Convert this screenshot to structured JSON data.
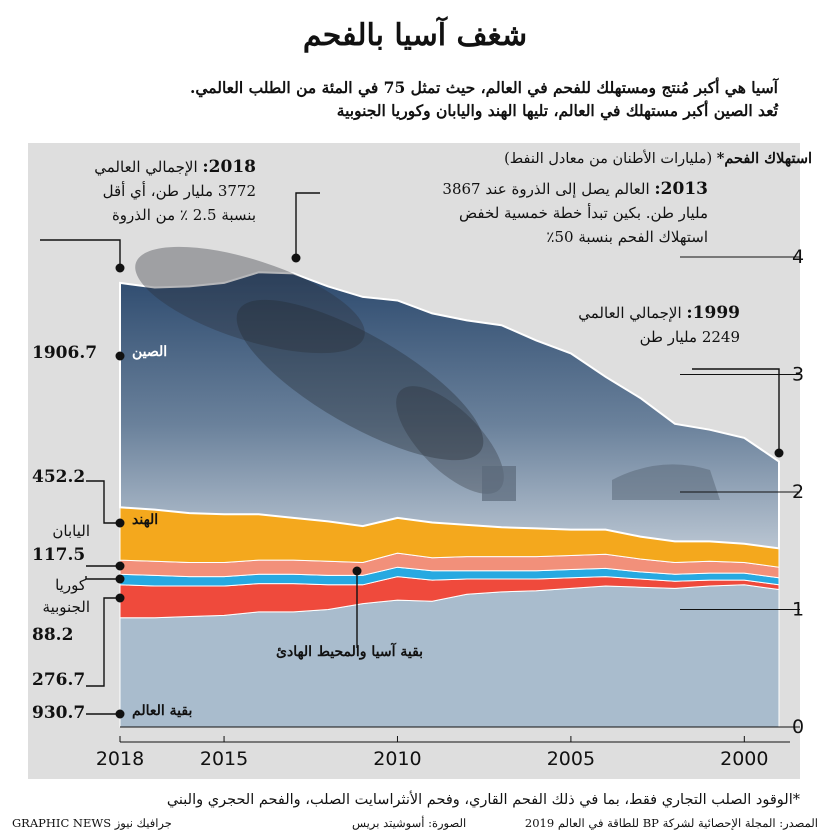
{
  "title": "شغف آسيا بالفحم",
  "subtitle_lines": [
    "آسيا هي أكبر مُنتج ومستهلك للفحم في العالم، حيث تمثل 75 في المئة من الطلب العالمي.",
    "تُعد الصين أكبر مستهلك في العالم، تليها الهند واليابان وكوريا الجنوبية"
  ],
  "axis_title_bold": "استهلاك الفحم*",
  "axis_title_rest": " (مليارات الأطنان من معادل النفط)",
  "annotations": {
    "a2018": {
      "year": "2018:",
      "text1": " الإجمالي العالمي",
      "text2": "3772 مليار طن، أي أقل",
      "text3": "بنسبة 2.5 ٪ من الذروة"
    },
    "a2013": {
      "year": "2013:",
      "text1": " العالم يصل إلى الذروة عند 3867",
      "text2": "مليار طن. بكين تبدأ خطة خمسية لخفض",
      "text3": "استهلاك الفحم بنسبة 50٪"
    },
    "a1999": {
      "year": "1999:",
      "text1": " الإجمالي العالمي",
      "text2": "2249 مليار طن"
    }
  },
  "region_labels": {
    "china": "الصين",
    "india": "الهند",
    "japan": "اليابان",
    "korea_1": "كوريا",
    "korea_2": "الجنوبية",
    "rest_asia": "بقية آسيا والمحيط الهادئ",
    "rest_world": "بقية العالم"
  },
  "value_labels": {
    "china": "1906.7",
    "india": "452.2",
    "japan": "117.5",
    "korea": "88.2",
    "rest_asia": "276.7",
    "rest_world": "930.7"
  },
  "footnote": "*الوقود الصلب التجاري فقط، بما في ذلك الفحم القاري، وفحم الأنثراسايت الصلب، والفحم الحجري والبني",
  "source": "المصدر: المجلة الإحصائية لشركة BP للطاقة في العالم 2019",
  "photo_credit": "الصورة: أسوشيتد بريس",
  "brand_en": "GRAPHIC NEWS",
  "brand_ar": "جرافيك نيوز",
  "colors": {
    "china_top": "#2d4a6e",
    "china_bottom": "#b9c5d2",
    "india": "#f4a81d",
    "japan": "#f2907a",
    "korea": "#27a9e1",
    "rest_asia": "#ef4a3c",
    "rest_world": "#a9bccd",
    "panel": "#dedede"
  },
  "chart_data": {
    "type": "area",
    "stacked": true,
    "x_direction": "reversed",
    "x": [
      2018,
      2017,
      2016,
      2015,
      2014,
      2013,
      2012,
      2011,
      2010,
      2009,
      2008,
      2007,
      2006,
      2005,
      2004,
      2003,
      2002,
      2001,
      2000,
      1999
    ],
    "xticks": [
      "2018",
      "2015",
      "2010",
      "2005",
      "2000"
    ],
    "yticks": [
      "4",
      "3",
      "2",
      "1",
      "0"
    ],
    "ylim": [
      0,
      4.6
    ],
    "series": [
      {
        "name": "بقية العالم",
        "values": [
          0.93,
          0.93,
          0.94,
          0.95,
          0.98,
          0.98,
          1.0,
          1.05,
          1.08,
          1.07,
          1.13,
          1.15,
          1.16,
          1.18,
          1.2,
          1.19,
          1.18,
          1.2,
          1.21,
          1.17
        ]
      },
      {
        "name": "بقية آسيا والمحيط الهادئ",
        "values": [
          0.28,
          0.27,
          0.26,
          0.25,
          0.24,
          0.24,
          0.21,
          0.16,
          0.2,
          0.18,
          0.13,
          0.11,
          0.1,
          0.09,
          0.08,
          0.07,
          0.06,
          0.05,
          0.04,
          0.04
        ]
      },
      {
        "name": "كوريا الجنوبية",
        "values": [
          0.09,
          0.09,
          0.08,
          0.08,
          0.08,
          0.08,
          0.08,
          0.08,
          0.08,
          0.08,
          0.07,
          0.07,
          0.07,
          0.07,
          0.07,
          0.06,
          0.06,
          0.06,
          0.06,
          0.06
        ]
      },
      {
        "name": "اليابان",
        "values": [
          0.12,
          0.12,
          0.12,
          0.12,
          0.12,
          0.12,
          0.12,
          0.11,
          0.12,
          0.11,
          0.12,
          0.12,
          0.12,
          0.12,
          0.12,
          0.11,
          0.1,
          0.1,
          0.09,
          0.09
        ]
      },
      {
        "name": "الهند",
        "values": [
          0.45,
          0.44,
          0.42,
          0.41,
          0.39,
          0.36,
          0.34,
          0.31,
          0.3,
          0.3,
          0.27,
          0.25,
          0.24,
          0.22,
          0.21,
          0.19,
          0.18,
          0.17,
          0.16,
          0.16
        ]
      },
      {
        "name": "الصين",
        "values": [
          1.91,
          1.89,
          1.93,
          1.97,
          2.06,
          2.08,
          2.0,
          1.95,
          1.85,
          1.78,
          1.74,
          1.72,
          1.6,
          1.5,
          1.3,
          1.18,
          1.0,
          0.95,
          0.9,
          0.74
        ]
      }
    ]
  }
}
